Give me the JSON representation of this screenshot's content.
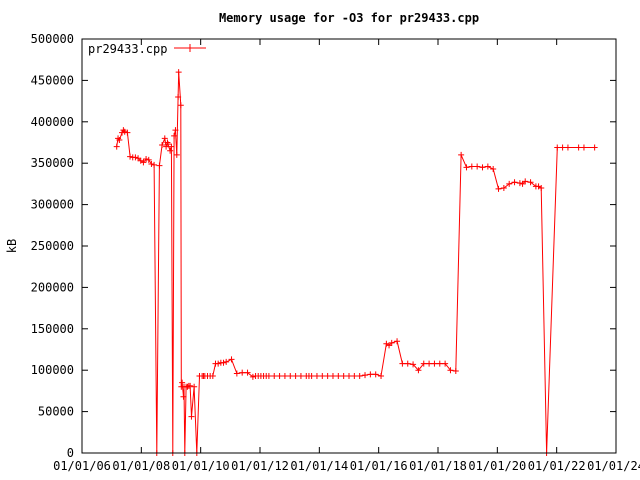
{
  "chart_data": {
    "type": "line",
    "title": "Memory usage for -O3 for pr29433.cpp",
    "xlabel": "",
    "ylabel": "kB",
    "ylim": [
      0,
      500000
    ],
    "xlim": [
      0,
      20
    ],
    "y_ticks": [
      0,
      50000,
      100000,
      150000,
      200000,
      250000,
      300000,
      350000,
      400000,
      450000,
      500000
    ],
    "y_tick_labels": [
      "0",
      "50000",
      "100000",
      "150000",
      "200000",
      "250000",
      "300000",
      "350000",
      "400000",
      "450000",
      "500000"
    ],
    "x_tick_labels": [
      "01/01/06",
      "01/01/08",
      "01/01/10",
      "01/01/12",
      "01/01/14",
      "01/01/16",
      "01/01/18",
      "01/01/20",
      "01/01/22",
      "01/01/24"
    ],
    "grid": false,
    "legend_position": "top-left",
    "line_color": "#ff0000",
    "series": [
      {
        "name": "pr29433.cpp",
        "x": [
          1.3,
          1.35,
          1.4,
          1.5,
          1.55,
          1.6,
          1.7,
          1.8,
          1.9,
          2.0,
          2.1,
          2.2,
          2.3,
          2.4,
          2.5,
          2.6,
          2.7,
          2.8,
          2.9,
          3.0,
          3.1,
          3.15,
          3.2,
          3.22,
          3.3,
          3.35,
          3.4,
          3.45,
          3.5,
          3.55,
          3.6,
          3.62,
          3.7,
          3.72,
          3.75,
          3.8,
          3.82,
          3.85,
          3.9,
          3.95,
          4.0,
          4.05,
          4.1,
          4.2,
          4.3,
          4.4,
          4.5,
          4.55,
          4.6,
          4.7,
          4.8,
          4.9,
          5.0,
          5.1,
          5.2,
          5.3,
          5.4,
          5.6,
          5.8,
          6.0,
          6.2,
          6.4,
          6.5,
          6.6,
          6.7,
          6.8,
          6.9,
          7.0,
          7.2,
          7.4,
          7.6,
          7.8,
          8.0,
          8.2,
          8.4,
          8.5,
          8.6,
          8.8,
          9.0,
          9.2,
          9.4,
          9.6,
          9.8,
          10.0,
          10.2,
          10.4,
          10.6,
          10.8,
          11.0,
          11.2,
          11.4,
          11.5,
          11.6,
          11.8,
          12.0,
          12.2,
          12.4,
          12.6,
          12.8,
          13.0,
          13.2,
          13.4,
          13.6,
          13.8,
          14.0,
          14.2,
          14.4,
          14.6,
          14.8,
          15.0,
          15.2,
          15.4,
          15.6,
          15.8,
          16.0,
          16.2,
          16.4,
          16.5,
          16.6,
          16.8,
          17.0,
          17.1,
          17.2,
          17.4,
          17.8,
          18.0,
          18.2,
          18.6,
          18.8,
          19.2
        ],
        "y": [
          370000,
          380000,
          378000,
          387000,
          390000,
          388000,
          387000,
          358000,
          357000,
          357000,
          356000,
          353000,
          351000,
          355000,
          354000,
          349000,
          348000,
          0,
          347000,
          372000,
          380000,
          370000,
          375000,
          373000,
          365000,
          370000,
          0,
          383000,
          390000,
          360000,
          430000,
          460000,
          420000,
          80000,
          85000,
          68000,
          80000,
          0,
          80000,
          80000,
          81000,
          81000,
          44000,
          80000,
          0,
          93000,
          93000,
          93000,
          93000,
          93000,
          93000,
          93000,
          108000,
          108000,
          109000,
          109000,
          110000,
          113000,
          96000,
          97000,
          97000,
          92000,
          93000,
          93000,
          93000,
          93000,
          93000,
          93000,
          93000,
          93000,
          93000,
          93000,
          93000,
          93000,
          93000,
          93000,
          93000,
          93000,
          93000,
          93000,
          93000,
          93000,
          93000,
          93000,
          93000,
          93000,
          94000,
          95000,
          95000,
          93000,
          132000,
          130000,
          133000,
          135000,
          108000,
          108000,
          107000,
          100000,
          108000,
          108000,
          108000,
          108000,
          108000,
          100000,
          99000,
          360000,
          345000,
          346000,
          346000,
          345000,
          346000,
          343000,
          319000,
          320000,
          325000,
          327000,
          326000,
          325000,
          328000,
          327000,
          322000,
          322000,
          320000,
          0,
          369000,
          369000,
          369000,
          369000,
          369000,
          369000
        ]
      }
    ]
  }
}
